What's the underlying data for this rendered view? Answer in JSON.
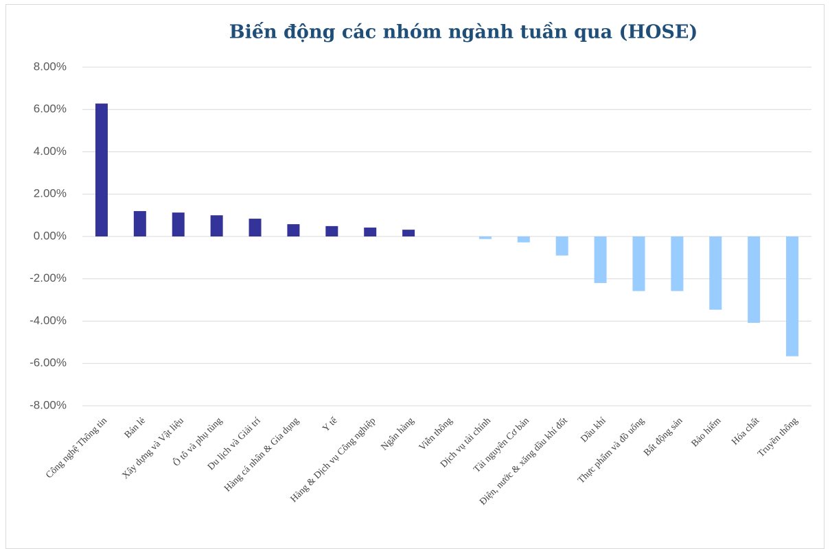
{
  "chart_data": {
    "type": "bar",
    "title": "Biến động các nhóm ngành tuần qua (HOSE)",
    "categories": [
      "Công nghệ Thông tin",
      "Bán lẻ",
      "Xây dựng và Vật liệu",
      "Ô tô và phụ tùng",
      "Du lịch và Giải trí",
      "Hàng cá nhân & Gia dụng",
      "Y tế",
      "Hàng & Dịch vụ Công nghiệp",
      "Ngân hàng",
      "Viễn thông",
      "Dịch vụ tài chính",
      "Tài nguyên Cơ bản",
      "Điện, nước & xăng dầu khí đốt",
      "Dầu khí",
      "Thực phẩm và đồ uống",
      "Bất động sản",
      "Bảo hiểm",
      "Hóa chất",
      "Truyền thông"
    ],
    "values": [
      6.28,
      1.2,
      1.13,
      1.0,
      0.84,
      0.58,
      0.49,
      0.42,
      0.32,
      0,
      -0.12,
      -0.28,
      -0.9,
      -2.2,
      -2.58,
      -2.58,
      -3.46,
      -4.08,
      -5.66
    ],
    "positive_color": "#333399",
    "negative_color": "#99ccff",
    "ylim": [
      -8,
      8
    ],
    "yticks": [
      {
        "value": -8,
        "label": "-8.00%"
      },
      {
        "value": -6,
        "label": "-6.00%"
      },
      {
        "value": -4,
        "label": "-4.00%"
      },
      {
        "value": -2,
        "label": "-2.00%"
      },
      {
        "value": 0,
        "label": "0.00%"
      },
      {
        "value": 2,
        "label": "2.00%"
      },
      {
        "value": 4,
        "label": "4.00%"
      },
      {
        "value": 6,
        "label": "6.00%"
      },
      {
        "value": 8,
        "label": "8.00%"
      }
    ],
    "grid": true
  }
}
